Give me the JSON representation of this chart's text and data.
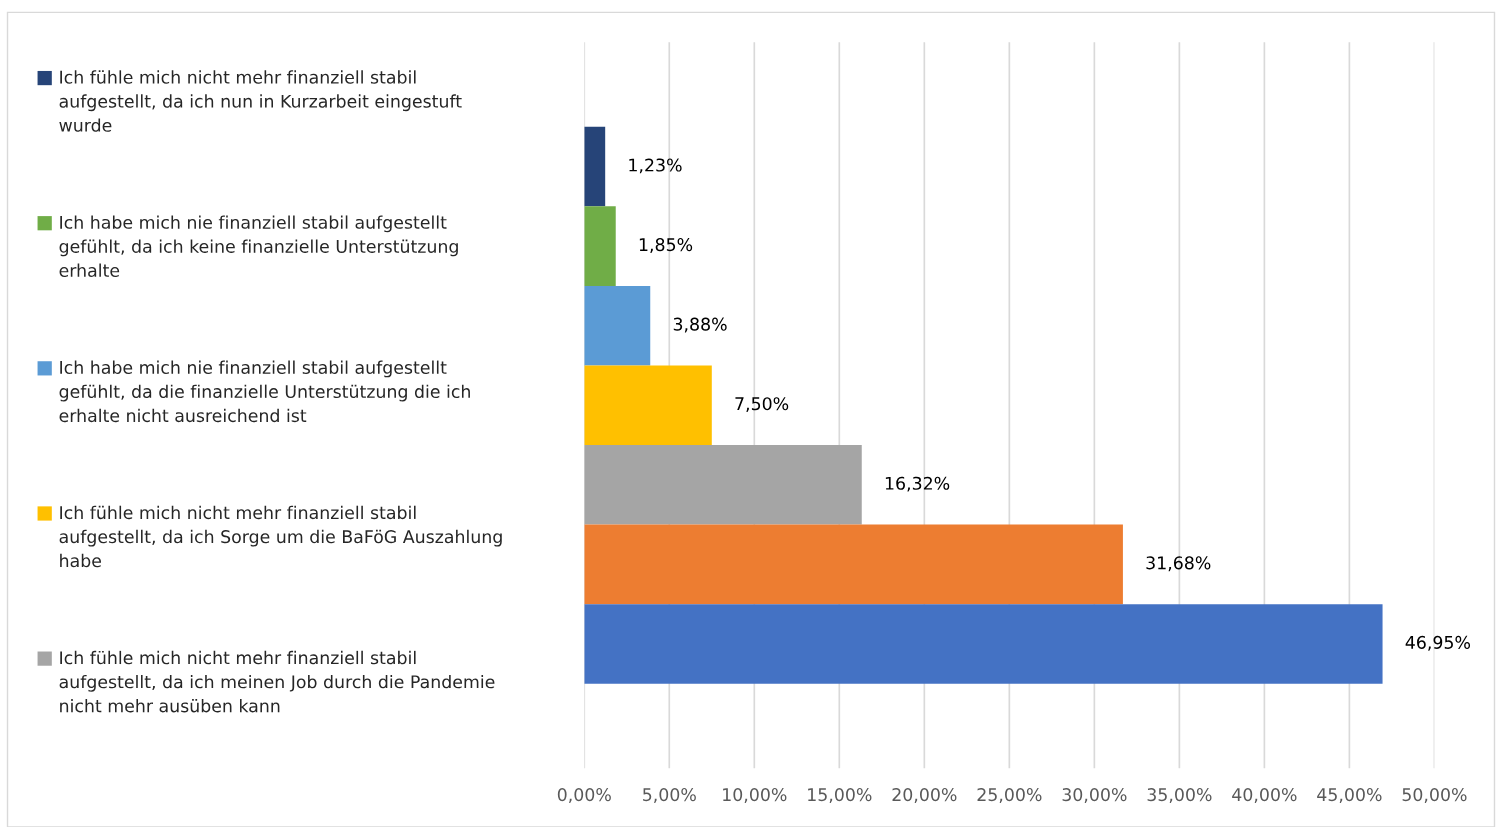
{
  "chart_data": {
    "type": "bar",
    "orientation": "horizontal",
    "categories": [
      null
    ],
    "series": [
      {
        "name": "Ich fühle mich nicht mehr finanziell stabil aufgestellt, da ich nun in Kurzarbeit eingestuft wurde",
        "color": "#264478",
        "values": [
          1.23
        ],
        "value_labels": [
          "1,23%"
        ]
      },
      {
        "name": "Ich habe mich nie finanziell stabil aufgestellt gefühlt, da ich keine finanzielle Unterstützung erhalte",
        "color": "#70ad47",
        "values": [
          1.85
        ],
        "value_labels": [
          "1,85%"
        ]
      },
      {
        "name": "Ich habe mich nie finanziell stabil aufgestellt gefühlt, da die finanzielle Unterstützung die ich erhalte nicht ausreichend ist",
        "color": "#5b9bd5",
        "values": [
          3.88
        ],
        "value_labels": [
          "3,88%"
        ]
      },
      {
        "name": "Ich fühle mich nicht mehr finanziell stabil aufgestellt, da ich Sorge um die BaFöG Auszahlung habe",
        "color": "#ffc000",
        "values": [
          7.5
        ],
        "value_labels": [
          "7,50%"
        ]
      },
      {
        "name": "Ich fühle mich nicht mehr finanziell stabil aufgestellt, da ich meinen Job durch die Pandemie nicht mehr ausüben kann",
        "color": "#a5a5a5",
        "values": [
          16.32
        ],
        "value_labels": [
          "16,32%"
        ]
      },
      {
        "color": "#ed7d31",
        "values": [
          31.68
        ],
        "value_labels": [
          "31,68%"
        ]
      },
      {
        "color": "#4472c4",
        "values": [
          46.95
        ],
        "value_labels": [
          "46,95%"
        ]
      }
    ],
    "xlim": [
      0,
      50
    ],
    "xticks": [
      {
        "value": 0,
        "label": "0,00%"
      },
      {
        "value": 5,
        "label": "5,00%"
      },
      {
        "value": 10,
        "label": "10,00%"
      },
      {
        "value": 15,
        "label": "15,00%"
      },
      {
        "value": 20,
        "label": "20,00%"
      },
      {
        "value": 25,
        "label": "25,00%"
      },
      {
        "value": 30,
        "label": "30,00%"
      },
      {
        "value": 35,
        "label": "35,00%"
      },
      {
        "value": 40,
        "label": "40,00%"
      },
      {
        "value": 45,
        "label": "45,00%"
      },
      {
        "value": 50,
        "label": "50,00%"
      }
    ],
    "grid": "x",
    "legend": "left"
  }
}
